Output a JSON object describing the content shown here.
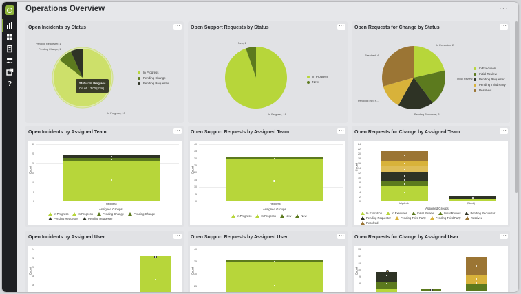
{
  "header": {
    "title": "Operations Overview",
    "more": "···"
  },
  "sidebar": {
    "icons": [
      "bar-chart-icon",
      "grid-icon",
      "document-icon",
      "users-icon",
      "external-link-icon",
      "help-icon"
    ]
  },
  "colors": {
    "olive": "#5c7a1e",
    "lime": "#b7d63a",
    "dark": "#2e3325",
    "brown": "#9b7534",
    "gold": "#d8b23a"
  },
  "panels": {
    "p1": {
      "title": "Open Incidents by Status",
      "more": "···",
      "legend": [
        "In Progress",
        "Pending Change",
        "Pending Requester"
      ],
      "labels": {
        "a": "Pending Requester, 1",
        "b": "Pending Change, 1",
        "c": "In Progress, 13"
      },
      "tooltip": {
        "line1": "Status: In Progress",
        "line2": "Count: 13.00 (87%)"
      }
    },
    "p2": {
      "title": "Open Support Requests by Status",
      "more": "···",
      "legend": [
        "In Progress",
        "New"
      ],
      "labels": {
        "a": "New, 1",
        "b": "In Progress, 18"
      }
    },
    "p3": {
      "title": "Open Requests for Change by Status",
      "more": "···",
      "legend": [
        "In Execution",
        "Initial Review",
        "Pending Requester",
        "Pending Third Party",
        "Resolved"
      ],
      "labels": {
        "a": "In Execution, 2",
        "b": "Initial Review, 2",
        "c": "Pending Requester, 3",
        "d": "Pending Third P...",
        "e": "Resolved, 4"
      }
    },
    "p4": {
      "title": "Open Incidents by Assigned Team",
      "more": "···",
      "yticks": [
        "30",
        "25",
        "20",
        "15",
        "10",
        "5",
        "0"
      ],
      "ylabel": "Count",
      "category": "Helpdesk",
      "xlabel": "Assigned Groups",
      "value_label": "13",
      "legend": [
        "In Progress",
        "In Progress",
        "Pending Change",
        "Pending Change",
        "Pending Requester",
        "Pending Requester"
      ]
    },
    "p5": {
      "title": "Open Support Requests by Assigned Team",
      "more": "···",
      "yticks": [
        "40",
        "35",
        "30",
        "25",
        "20",
        "15",
        "10",
        "5",
        "0"
      ],
      "ylabel": "Count",
      "category": "Helpdesk",
      "xlabel": "Assigned Groups",
      "legend": [
        "In Progress",
        "In Progress",
        "New",
        "New"
      ]
    },
    "p6": {
      "title": "Open Requests for Change by Assigned Team",
      "more": "···",
      "yticks": [
        "24",
        "22",
        "20",
        "18",
        "16",
        "14",
        "12",
        "10",
        "8",
        "6",
        "4",
        "2",
        "0"
      ],
      "ylabel": "Count",
      "categories": [
        "Helpdesk",
        "(Blank)"
      ],
      "xlabel": "Assigned Groups",
      "legend": [
        "In Execution",
        "In Execution",
        "Initial Review",
        "Initial Review",
        "Pending Requester",
        "Pending Requester",
        "Pending Third Party",
        "Pending Third Party",
        "Resolved",
        "Resolved"
      ]
    },
    "p7": {
      "title": "Open Incidents by Assigned User",
      "more": "···",
      "yticks": [
        "24",
        "22",
        "20",
        "18",
        "16"
      ],
      "ylabel": "Count"
    },
    "p8": {
      "title": "Open Support Requests by Assigned User",
      "more": "···",
      "yticks": [
        "40",
        "35",
        "30",
        "25"
      ],
      "ylabel": "Count"
    },
    "p9": {
      "title": "Open Requests for Change by Assigned User",
      "more": "···",
      "yticks": [
        "13",
        "12",
        "11",
        "10",
        "9",
        "8"
      ],
      "ylabel": "Count"
    }
  }
}
